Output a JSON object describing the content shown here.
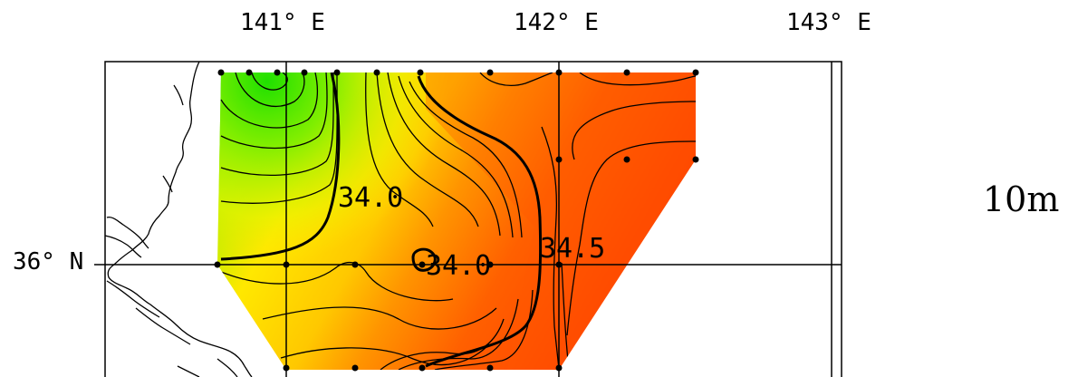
{
  "axes": {
    "longitude_labels": [
      "141° E",
      "142° E",
      "143° E"
    ],
    "latitude_labels": [
      "36° N"
    ]
  },
  "depth_label": "10m",
  "contour_labels": [
    "34.0",
    "34.0",
    "34.5"
  ],
  "legend": {
    "colors": {
      "low": "#22e000",
      "mid_low": "#c8f000",
      "mid": "#ffe000",
      "mid_high": "#ff9a00",
      "high": "#ff4000",
      "contour": "#000000",
      "coast": "#000000"
    }
  }
}
